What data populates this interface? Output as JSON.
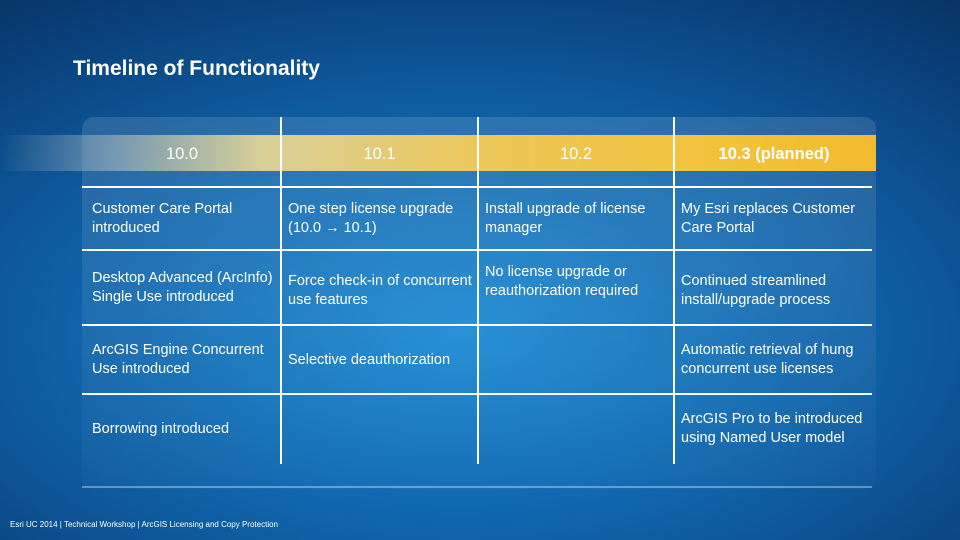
{
  "slide": {
    "title": "Timeline of Functionality",
    "footer": "Esri UC 2014 | Technical Workshop | ArcGIS Licensing and Copy Protection"
  },
  "timeline": {
    "versions": [
      "10.0",
      "10.1",
      "10.2",
      "10.3 (planned)"
    ],
    "rows": [
      [
        "Customer Care Portal introduced",
        "One step license upgrade (10.0 → 10.1)",
        "Install upgrade of license manager",
        "My Esri replaces Customer Care Portal"
      ],
      [
        "Desktop Advanced (ArcInfo) Single Use introduced",
        "Force check-in of concurrent use features",
        "No license upgrade or reauthorization required",
        "Continued streamlined install/upgrade process"
      ],
      [
        "ArcGIS Engine Concurrent Use introduced",
        "Selective deauthorization",
        "",
        "Automatic retrieval of hung concurrent use licenses"
      ],
      [
        "Borrowing introduced",
        "",
        "",
        "ArcGIS Pro to be introduced using Named User model"
      ]
    ]
  }
}
